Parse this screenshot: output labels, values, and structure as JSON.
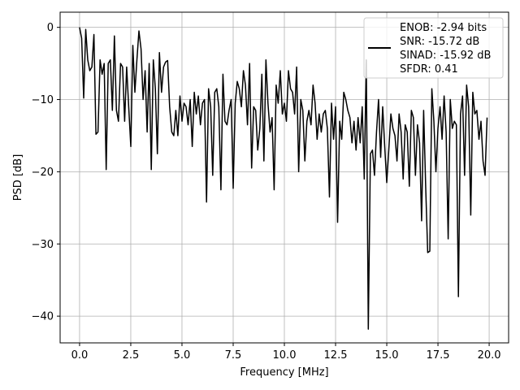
{
  "chart_data": {
    "type": "line",
    "xlabel": "Frequency [MHz]",
    "ylabel": "PSD [dB]",
    "xlim": [
      -0.95,
      20.95
    ],
    "ylim": [
      -43.7,
      2.1
    ],
    "xticks": [
      0.0,
      2.5,
      5.0,
      7.5,
      10.0,
      12.5,
      15.0,
      17.5,
      20.0
    ],
    "xtick_labels": [
      "0.0",
      "2.5",
      "5.0",
      "7.5",
      "10.0",
      "12.5",
      "15.0",
      "17.5",
      "20.0"
    ],
    "yticks": [
      0,
      -10,
      -20,
      -30,
      -40
    ],
    "ytick_labels": [
      "0",
      "−10",
      "−20",
      "−30",
      "−40"
    ],
    "grid": true,
    "line_color": "#000000",
    "legend": {
      "placement": "top-right",
      "lines": [
        "ENOB: -2.94 bits",
        "SNR: -15.72 dB",
        "SINAD: -15.92 dB",
        "SFDR: 0.41"
      ]
    },
    "series": [
      {
        "x": [
          0.0,
          0.1,
          0.2,
          0.3,
          0.4,
          0.5,
          0.6,
          0.7,
          0.8,
          0.9,
          1.0,
          1.1,
          1.2,
          1.3,
          1.4,
          1.5,
          1.6,
          1.7,
          1.8,
          1.9,
          2.0,
          2.1,
          2.2,
          2.3,
          2.4,
          2.5,
          2.6,
          2.7,
          2.8,
          2.9,
          3.0,
          3.1,
          3.2,
          3.3,
          3.4,
          3.5,
          3.6,
          3.7,
          3.8,
          3.9,
          4.0,
          4.1,
          4.2,
          4.3,
          4.4,
          4.5,
          4.6,
          4.7,
          4.8,
          4.9,
          5.0,
          5.1,
          5.2,
          5.3,
          5.4,
          5.5,
          5.6,
          5.7,
          5.8,
          5.9,
          6.0,
          6.1,
          6.2,
          6.3,
          6.4,
          6.5,
          6.6,
          6.7,
          6.8,
          6.9,
          7.0,
          7.1,
          7.2,
          7.3,
          7.4,
          7.5,
          7.6,
          7.7,
          7.8,
          7.9,
          8.0,
          8.1,
          8.2,
          8.3,
          8.4,
          8.5,
          8.6,
          8.7,
          8.8,
          8.9,
          9.0,
          9.1,
          9.2,
          9.3,
          9.4,
          9.5,
          9.6,
          9.7,
          9.8,
          9.9,
          10.0,
          10.1,
          10.2,
          10.3,
          10.4,
          10.5,
          10.6,
          10.7,
          10.8,
          10.9,
          11.0,
          11.1,
          11.2,
          11.3,
          11.4,
          11.5,
          11.6,
          11.7,
          11.8,
          11.9,
          12.0,
          12.1,
          12.2,
          12.3,
          12.4,
          12.5,
          12.6,
          12.7,
          12.8,
          12.9,
          13.0,
          13.1,
          13.2,
          13.3,
          13.4,
          13.5,
          13.6,
          13.7,
          13.8,
          13.9,
          14.0,
          14.1,
          14.2,
          14.3,
          14.4,
          14.5,
          14.6,
          14.7,
          14.8,
          14.9,
          15.0,
          15.1,
          15.2,
          15.3,
          15.4,
          15.5,
          15.6,
          15.7,
          15.8,
          15.9,
          16.0,
          16.1,
          16.2,
          16.3,
          16.4,
          16.5,
          16.6,
          16.7,
          16.8,
          16.9,
          17.0,
          17.1,
          17.2,
          17.3,
          17.4,
          17.5,
          17.6,
          17.7,
          17.8,
          17.9,
          18.0,
          18.1,
          18.2,
          18.3,
          18.4,
          18.5,
          18.6,
          18.7,
          18.8,
          18.9,
          19.0,
          19.1,
          19.2,
          19.3,
          19.4,
          19.5,
          19.6,
          19.7,
          19.8,
          19.9
        ],
        "y": [
          0.0,
          -1.5,
          -9.8,
          -0.3,
          -4.5,
          -6.0,
          -5.5,
          -1.0,
          -14.8,
          -14.5,
          -4.5,
          -6.5,
          -5.0,
          -19.7,
          -5.0,
          -4.5,
          -11.5,
          -1.2,
          -11.5,
          -13.0,
          -5.0,
          -5.5,
          -13.0,
          -5.5,
          -11.0,
          -16.5,
          -2.5,
          -9.0,
          -4.5,
          -0.5,
          -3.0,
          -10.0,
          -6.0,
          -14.5,
          -5.0,
          -19.7,
          -4.5,
          -8.5,
          -17.5,
          -3.5,
          -9.0,
          -5.5,
          -4.8,
          -4.6,
          -11.0,
          -14.5,
          -15.0,
          -11.5,
          -15.0,
          -9.5,
          -13.0,
          -10.5,
          -11.0,
          -13.5,
          -10.0,
          -16.5,
          -9.0,
          -12.0,
          -9.5,
          -13.5,
          -10.5,
          -10.0,
          -24.2,
          -8.5,
          -11.0,
          -20.5,
          -9.0,
          -8.5,
          -11.0,
          -22.5,
          -6.5,
          -13.0,
          -13.5,
          -11.5,
          -10.0,
          -22.3,
          -10.5,
          -7.5,
          -8.5,
          -11.0,
          -6.0,
          -8.0,
          -13.5,
          -5.0,
          -19.5,
          -11.0,
          -11.5,
          -17.0,
          -14.0,
          -6.5,
          -18.5,
          -4.5,
          -10.5,
          -14.5,
          -12.5,
          -22.5,
          -8.0,
          -10.5,
          -6.0,
          -12.0,
          -10.5,
          -13.0,
          -6.0,
          -8.5,
          -9.0,
          -12.0,
          -5.5,
          -20.0,
          -10.0,
          -11.5,
          -18.5,
          -13.0,
          -11.5,
          -13.5,
          -8.0,
          -10.5,
          -15.5,
          -12.0,
          -14.5,
          -12.0,
          -11.5,
          -14.0,
          -23.5,
          -10.5,
          -15.5,
          -11.0,
          -27.0,
          -13.0,
          -15.5,
          -9.0,
          -10.0,
          -11.5,
          -12.5,
          -16.0,
          -13.0,
          -17.0,
          -12.5,
          -16.0,
          -11.0,
          -21.0,
          -4.5,
          -41.8,
          -17.5,
          -17.0,
          -20.5,
          -14.5,
          -10.0,
          -18.0,
          -11.0,
          -16.5,
          -21.5,
          -17.0,
          -12.0,
          -14.0,
          -15.0,
          -18.5,
          -12.0,
          -14.5,
          -21.0,
          -13.5,
          -14.5,
          -22.0,
          -11.5,
          -12.5,
          -20.5,
          -13.5,
          -16.0,
          -26.8,
          -11.5,
          -22.0,
          -31.2,
          -31.0,
          -8.5,
          -13.0,
          -20.0,
          -14.0,
          -11.0,
          -15.5,
          -9.5,
          -14.5,
          -29.3,
          -10.0,
          -14.0,
          -13.0,
          -13.5,
          -37.3,
          -12.0,
          -9.5,
          -20.5,
          -8.0,
          -11.0,
          -26.0,
          -9.0,
          -12.0,
          -11.5,
          -15.5,
          -13.0,
          -18.5,
          -20.5,
          -12.5
        ]
      }
    ]
  }
}
